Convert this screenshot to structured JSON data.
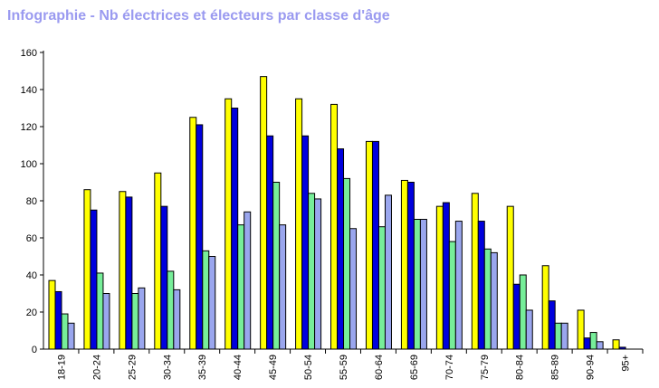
{
  "chart_data": {
    "type": "bar",
    "title": "Infographie - Nb électrices et électeurs par classe d'âge",
    "categories": [
      "18-19",
      "20-24",
      "25-29",
      "30-34",
      "35-39",
      "40-44",
      "45-49",
      "50-54",
      "55-59",
      "60-64",
      "65-69",
      "70-74",
      "75-79",
      "80-84",
      "85-89",
      "90-94",
      "95+"
    ],
    "series": [
      {
        "color": "#ffff00",
        "values": [
          37,
          86,
          85,
          95,
          125,
          135,
          147,
          135,
          132,
          112,
          91,
          77,
          84,
          77,
          45,
          21,
          5
        ]
      },
      {
        "color": "#0000dd",
        "values": [
          31,
          75,
          82,
          77,
          121,
          130,
          115,
          115,
          108,
          112,
          90,
          79,
          69,
          35,
          26,
          6,
          1
        ]
      },
      {
        "color": "#77ee99",
        "values": [
          19,
          41,
          30,
          42,
          53,
          67,
          90,
          84,
          92,
          66,
          70,
          58,
          54,
          40,
          14,
          9,
          0
        ]
      },
      {
        "color": "#9aa6ee",
        "values": [
          14,
          30,
          33,
          32,
          50,
          74,
          67,
          81,
          65,
          83,
          70,
          69,
          52,
          21,
          14,
          4,
          0
        ]
      }
    ],
    "ylim": [
      0,
      160
    ],
    "yticks": [
      "0",
      "20",
      "40",
      "60",
      "80",
      "100",
      "120",
      "140",
      "160"
    ],
    "grid": false,
    "legend": "none"
  }
}
